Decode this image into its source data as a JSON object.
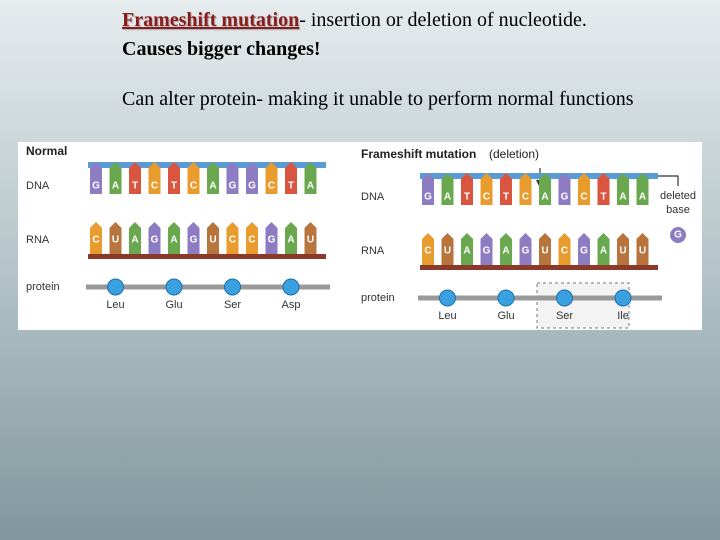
{
  "heading": {
    "term": "Frameshift mutation",
    "definition": "- insertion or deletion of nucleotide.",
    "emphasis": "Causes bigger changes!"
  },
  "body": "Can alter protein- making it unable to perform normal functions",
  "normal_panel": {
    "title": "Normal",
    "row_labels": [
      "DNA",
      "RNA",
      "protein"
    ],
    "dna": [
      "G",
      "A",
      "T",
      "C",
      "T",
      "C",
      "A",
      "G",
      "G",
      "C",
      "T",
      "A"
    ],
    "rna": [
      "C",
      "U",
      "A",
      "G",
      "A",
      "G",
      "U",
      "C",
      "C",
      "G",
      "A",
      "U"
    ],
    "amino_acids": [
      "Leu",
      "Glu",
      "Ser",
      "Asp"
    ]
  },
  "mutation_panel": {
    "title": "Frameshift mutation",
    "subtitle": "(deletion)",
    "row_labels": [
      "DNA",
      "RNA",
      "protein"
    ],
    "dna": [
      "G",
      "A",
      "T",
      "C",
      "T",
      "C",
      "A",
      "G",
      "C",
      "T",
      "A",
      "A"
    ],
    "rna": [
      "C",
      "U",
      "A",
      "G",
      "A",
      "G",
      "U",
      "C",
      "G",
      "A",
      "U",
      "U"
    ],
    "amino_acids": [
      "Leu",
      "Glu",
      "Ser",
      "Ile"
    ],
    "deleted_label": [
      "deleted",
      "base"
    ],
    "deleted_base": "G"
  }
}
